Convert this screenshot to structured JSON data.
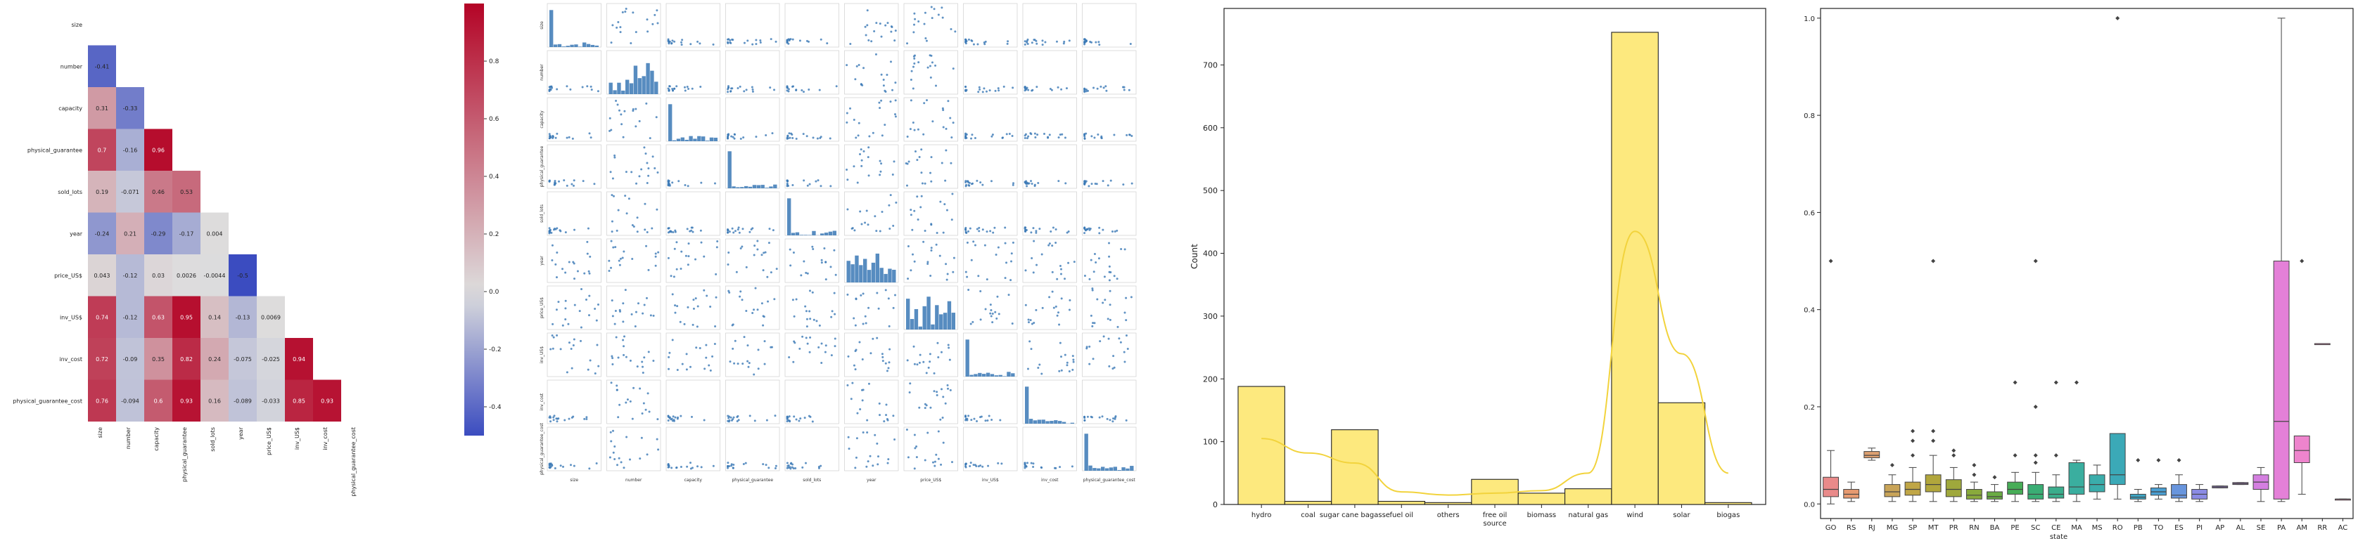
{
  "colors": {
    "hist_fill": "#fde97e",
    "hist_kde": "#f2d33c",
    "scatter": "#3a78b5",
    "heatmap_pos": "#b40426",
    "heatmap_mid": "#dddddd",
    "heatmap_neg": "#3b4cc0"
  },
  "chart_data": [
    {
      "type": "heatmap",
      "variables": [
        "size",
        "number",
        "capacity",
        "physical_guarantee",
        "sold_lots",
        "year",
        "price_US$",
        "inv_US$",
        "inv_cost",
        "physical_guarantee_cost"
      ],
      "row_labels": [
        "size",
        "number",
        "capacity",
        "physical_guarantee",
        "sold_lots",
        "year",
        "price_US$",
        "inv_US$",
        "inv_cost",
        "physical_guarantee_cost"
      ],
      "col_labels": [
        "size",
        "number",
        "capacity",
        "physical_guarantee",
        "sold_lots",
        "year",
        "price_US$",
        "inv_US$",
        "inv_cost",
        "physical_guarantee_cost"
      ],
      "values": [
        [
          null
        ],
        [
          -0.41,
          null
        ],
        [
          0.31,
          -0.33,
          null
        ],
        [
          0.7,
          -0.16,
          0.96,
          null
        ],
        [
          0.19,
          -0.071,
          0.46,
          0.53,
          null
        ],
        [
          -0.24,
          0.21,
          -0.29,
          -0.17,
          0.004,
          null
        ],
        [
          0.043,
          -0.12,
          0.03,
          0.0026,
          -0.0044,
          -0.5,
          null
        ],
        [
          0.74,
          -0.12,
          0.63,
          0.95,
          0.14,
          -0.13,
          0.0069,
          null
        ],
        [
          0.72,
          -0.09,
          0.35,
          0.82,
          0.24,
          -0.075,
          -0.025,
          0.94,
          null
        ],
        [
          0.76,
          -0.094,
          0.6,
          0.93,
          0.16,
          -0.089,
          -0.033,
          0.85,
          0.93,
          null
        ]
      ],
      "colorbar_ticks": [
        0.8,
        0.6,
        0.4,
        0.2,
        0.0,
        -0.2,
        -0.4
      ],
      "colorbar_range": [
        -0.5,
        1.0
      ]
    },
    {
      "type": "scatter",
      "layout": "pairplot 10x10",
      "x_axis_labels": [
        "size",
        "number",
        "capacity",
        "physical_guarantee",
        "sold_lots",
        "year",
        "price_US$",
        "inv_US$",
        "inv_cost",
        "physical_guarantee_cost"
      ],
      "y_axis_labels": [
        "size",
        "number",
        "capacity",
        "physical_guarantee",
        "sold_lots",
        "year",
        "price_US$",
        "inv_US$",
        "inv_cost",
        "physical_guarantee_cost"
      ]
    },
    {
      "type": "bar",
      "subtype": "histogram with kde",
      "categories": [
        "hydro",
        "coal",
        "sugar cane bagasse",
        "fuel oil",
        "others",
        "free oil source",
        "biomass",
        "natural gas",
        "wind",
        "solar",
        "biogas"
      ],
      "values": [
        188,
        5,
        119,
        5,
        3,
        40,
        18,
        25,
        752,
        162,
        3
      ],
      "kde": [
        105,
        82,
        66,
        20,
        15,
        18,
        22,
        50,
        435,
        240,
        50
      ],
      "xlabel": "",
      "ylabel": "Count",
      "ylim": [
        0,
        790
      ],
      "yticks": [
        0,
        100,
        200,
        300,
        400,
        500,
        600,
        700
      ]
    },
    {
      "type": "box",
      "xlabel": "state",
      "ylabel": "",
      "ylim": [
        -0.03,
        1.02
      ],
      "yticks": [
        0.0,
        0.2,
        0.4,
        0.6,
        0.8,
        1.0
      ],
      "categories": [
        "GO",
        "RS",
        "RJ",
        "MG",
        "SP",
        "MT",
        "PR",
        "RN",
        "BA",
        "PE",
        "SC",
        "CE",
        "MA",
        "MS",
        "RO",
        "PB",
        "TO",
        "ES",
        "PI",
        "AP",
        "AL",
        "SE",
        "PA",
        "AM",
        "RR",
        "AC"
      ],
      "boxes": [
        {
          "q1": 0.015,
          "med": 0.03,
          "q3": 0.055,
          "lo": 0.0,
          "hi": 0.11,
          "out": [
            0.5
          ],
          "color": "#e98a8a"
        },
        {
          "q1": 0.012,
          "med": 0.02,
          "q3": 0.03,
          "lo": 0.005,
          "hi": 0.045,
          "out": [],
          "color": "#e69a70"
        },
        {
          "q1": 0.095,
          "med": 0.1,
          "q3": 0.108,
          "lo": 0.09,
          "hi": 0.115,
          "out": [],
          "color": "#dda071"
        },
        {
          "q1": 0.015,
          "med": 0.025,
          "q3": 0.04,
          "lo": 0.005,
          "hi": 0.06,
          "out": [
            0.08
          ],
          "color": "#c9a458"
        },
        {
          "q1": 0.018,
          "med": 0.03,
          "q3": 0.045,
          "lo": 0.005,
          "hi": 0.075,
          "out": [
            0.1,
            0.13,
            0.15
          ],
          "color": "#c0a646"
        },
        {
          "q1": 0.025,
          "med": 0.04,
          "q3": 0.06,
          "lo": 0.005,
          "hi": 0.1,
          "out": [
            0.13,
            0.15,
            0.5
          ],
          "color": "#b1a63c"
        },
        {
          "q1": 0.015,
          "med": 0.03,
          "q3": 0.05,
          "lo": 0.005,
          "hi": 0.075,
          "out": [
            0.1,
            0.11
          ],
          "color": "#9fa83c"
        },
        {
          "q1": 0.01,
          "med": 0.018,
          "q3": 0.03,
          "lo": 0.005,
          "hi": 0.045,
          "out": [
            0.06,
            0.08
          ],
          "color": "#89aa3c"
        },
        {
          "q1": 0.01,
          "med": 0.015,
          "q3": 0.025,
          "lo": 0.005,
          "hi": 0.04,
          "out": [
            0.055
          ],
          "color": "#6aac44"
        },
        {
          "q1": 0.02,
          "med": 0.03,
          "q3": 0.045,
          "lo": 0.005,
          "hi": 0.065,
          "out": [
            0.1,
            0.25
          ],
          "color": "#47ad57"
        },
        {
          "q1": 0.01,
          "med": 0.02,
          "q3": 0.04,
          "lo": 0.005,
          "hi": 0.065,
          "out": [
            0.085,
            0.1,
            0.2,
            0.5
          ],
          "color": "#3aad74"
        },
        {
          "q1": 0.012,
          "med": 0.02,
          "q3": 0.035,
          "lo": 0.005,
          "hi": 0.06,
          "out": [
            0.1,
            0.25
          ],
          "color": "#3aad8c"
        },
        {
          "q1": 0.02,
          "med": 0.035,
          "q3": 0.085,
          "lo": 0.005,
          "hi": 0.09,
          "out": [
            0.25
          ],
          "color": "#3aae9f"
        },
        {
          "q1": 0.025,
          "med": 0.04,
          "q3": 0.06,
          "lo": 0.01,
          "hi": 0.08,
          "out": [],
          "color": "#3aadab"
        },
        {
          "q1": 0.04,
          "med": 0.06,
          "q3": 0.145,
          "lo": 0.01,
          "hi": 0.145,
          "out": [
            1.0
          ],
          "color": "#3ba9b7"
        },
        {
          "q1": 0.01,
          "med": 0.014,
          "q3": 0.02,
          "lo": 0.005,
          "hi": 0.03,
          "out": [
            0.09
          ],
          "color": "#3ea5c4"
        },
        {
          "q1": 0.018,
          "med": 0.025,
          "q3": 0.033,
          "lo": 0.01,
          "hi": 0.04,
          "out": [
            0.09
          ],
          "color": "#4a9fd3"
        },
        {
          "q1": 0.012,
          "med": 0.018,
          "q3": 0.04,
          "lo": 0.005,
          "hi": 0.06,
          "out": [
            0.09
          ],
          "color": "#6895dd"
        },
        {
          "q1": 0.01,
          "med": 0.02,
          "q3": 0.03,
          "lo": 0.005,
          "hi": 0.04,
          "out": [],
          "color": "#8b8be4"
        },
        {
          "q1": 0.033,
          "med": 0.035,
          "q3": 0.037,
          "lo": 0.033,
          "hi": 0.037,
          "out": [],
          "color": "#a887e8"
        },
        {
          "q1": 0.04,
          "med": 0.042,
          "q3": 0.044,
          "lo": 0.04,
          "hi": 0.044,
          "out": [],
          "color": "#c184e6"
        },
        {
          "q1": 0.03,
          "med": 0.045,
          "q3": 0.06,
          "lo": 0.005,
          "hi": 0.075,
          "out": [],
          "color": "#d47fe0"
        },
        {
          "q1": 0.01,
          "med": 0.17,
          "q3": 0.5,
          "lo": 0.005,
          "hi": 1.0,
          "out": [],
          "color": "#e480d8"
        },
        {
          "q1": 0.085,
          "med": 0.11,
          "q3": 0.14,
          "lo": 0.02,
          "hi": 0.14,
          "out": [
            0.5
          ],
          "color": "#ee84cd"
        },
        {
          "q1": 0.33,
          "med": 0.33,
          "q3": 0.33,
          "lo": 0.33,
          "hi": 0.33,
          "out": [],
          "color": "#f08ac0"
        },
        {
          "q1": 0.01,
          "med": 0.01,
          "q3": 0.01,
          "lo": 0.01,
          "hi": 0.01,
          "out": [],
          "color": "#f091b2"
        }
      ]
    }
  ]
}
